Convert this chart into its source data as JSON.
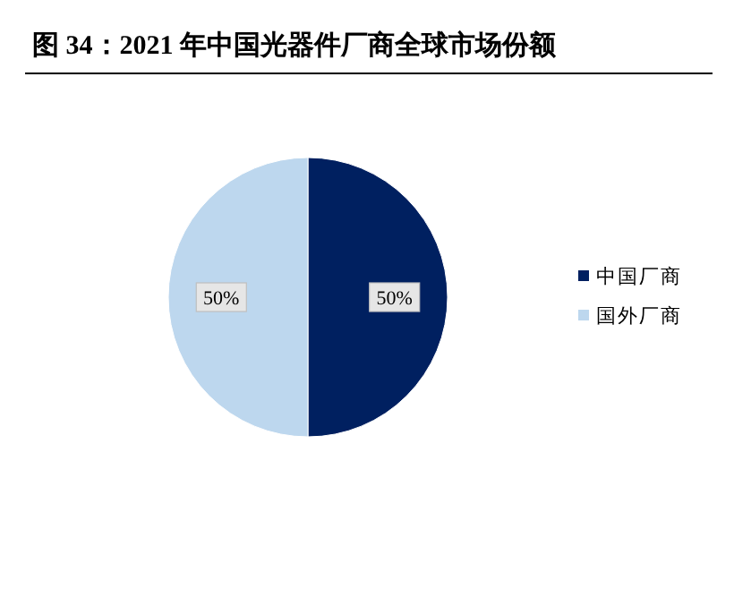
{
  "chart_data": {
    "type": "pie",
    "title": "图 34：2021 年中国光器件厂商全球市场份额",
    "categories": [
      "中国厂商",
      "国外厂商"
    ],
    "values": [
      50,
      50
    ],
    "colors": [
      "#002060",
      "#bdd7ee"
    ],
    "value_labels": [
      "50%",
      "50%"
    ],
    "legend": "right"
  }
}
